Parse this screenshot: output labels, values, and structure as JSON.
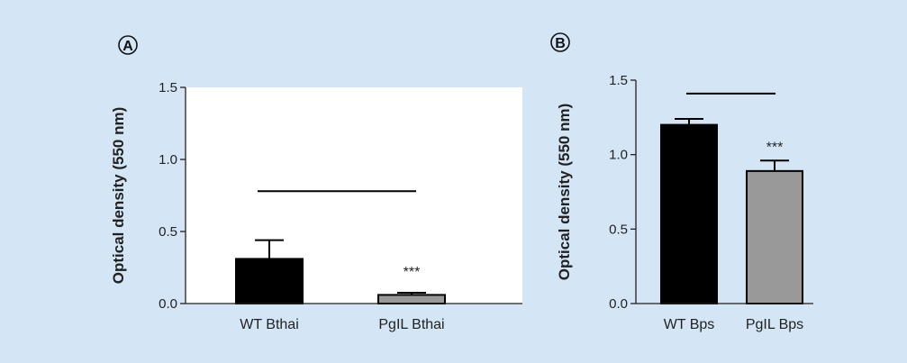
{
  "chart_data": [
    {
      "panel_label": "A",
      "type": "bar",
      "ylabel": "Optical density (550 nm)",
      "ylim": [
        0,
        1.5
      ],
      "yticks": [
        "0.0",
        "0.5",
        "1.0",
        "1.5"
      ],
      "categories": [
        "WT Bthai",
        "PgIL Bthai"
      ],
      "values": [
        0.31,
        0.06
      ],
      "errors": [
        0.13,
        0.015
      ],
      "colors": [
        "#000000",
        "#999999"
      ],
      "plot_background": "#ffffff",
      "significance_line_y": 0.78,
      "significance_label": "***",
      "significance_on": 1
    },
    {
      "panel_label": "B",
      "type": "bar",
      "ylabel": "Optical density (550 nm)",
      "ylim": [
        0,
        1.5
      ],
      "yticks": [
        "0.0",
        "0.5",
        "1.0",
        "1.5"
      ],
      "categories": [
        "WT Bps",
        "PgIL Bps"
      ],
      "values": [
        1.2,
        0.89
      ],
      "errors": [
        0.04,
        0.07
      ],
      "colors": [
        "#000000",
        "#999999"
      ],
      "plot_background": "#d4e6f5",
      "significance_line_y": 1.41,
      "significance_label": "***",
      "significance_on": 1
    }
  ]
}
